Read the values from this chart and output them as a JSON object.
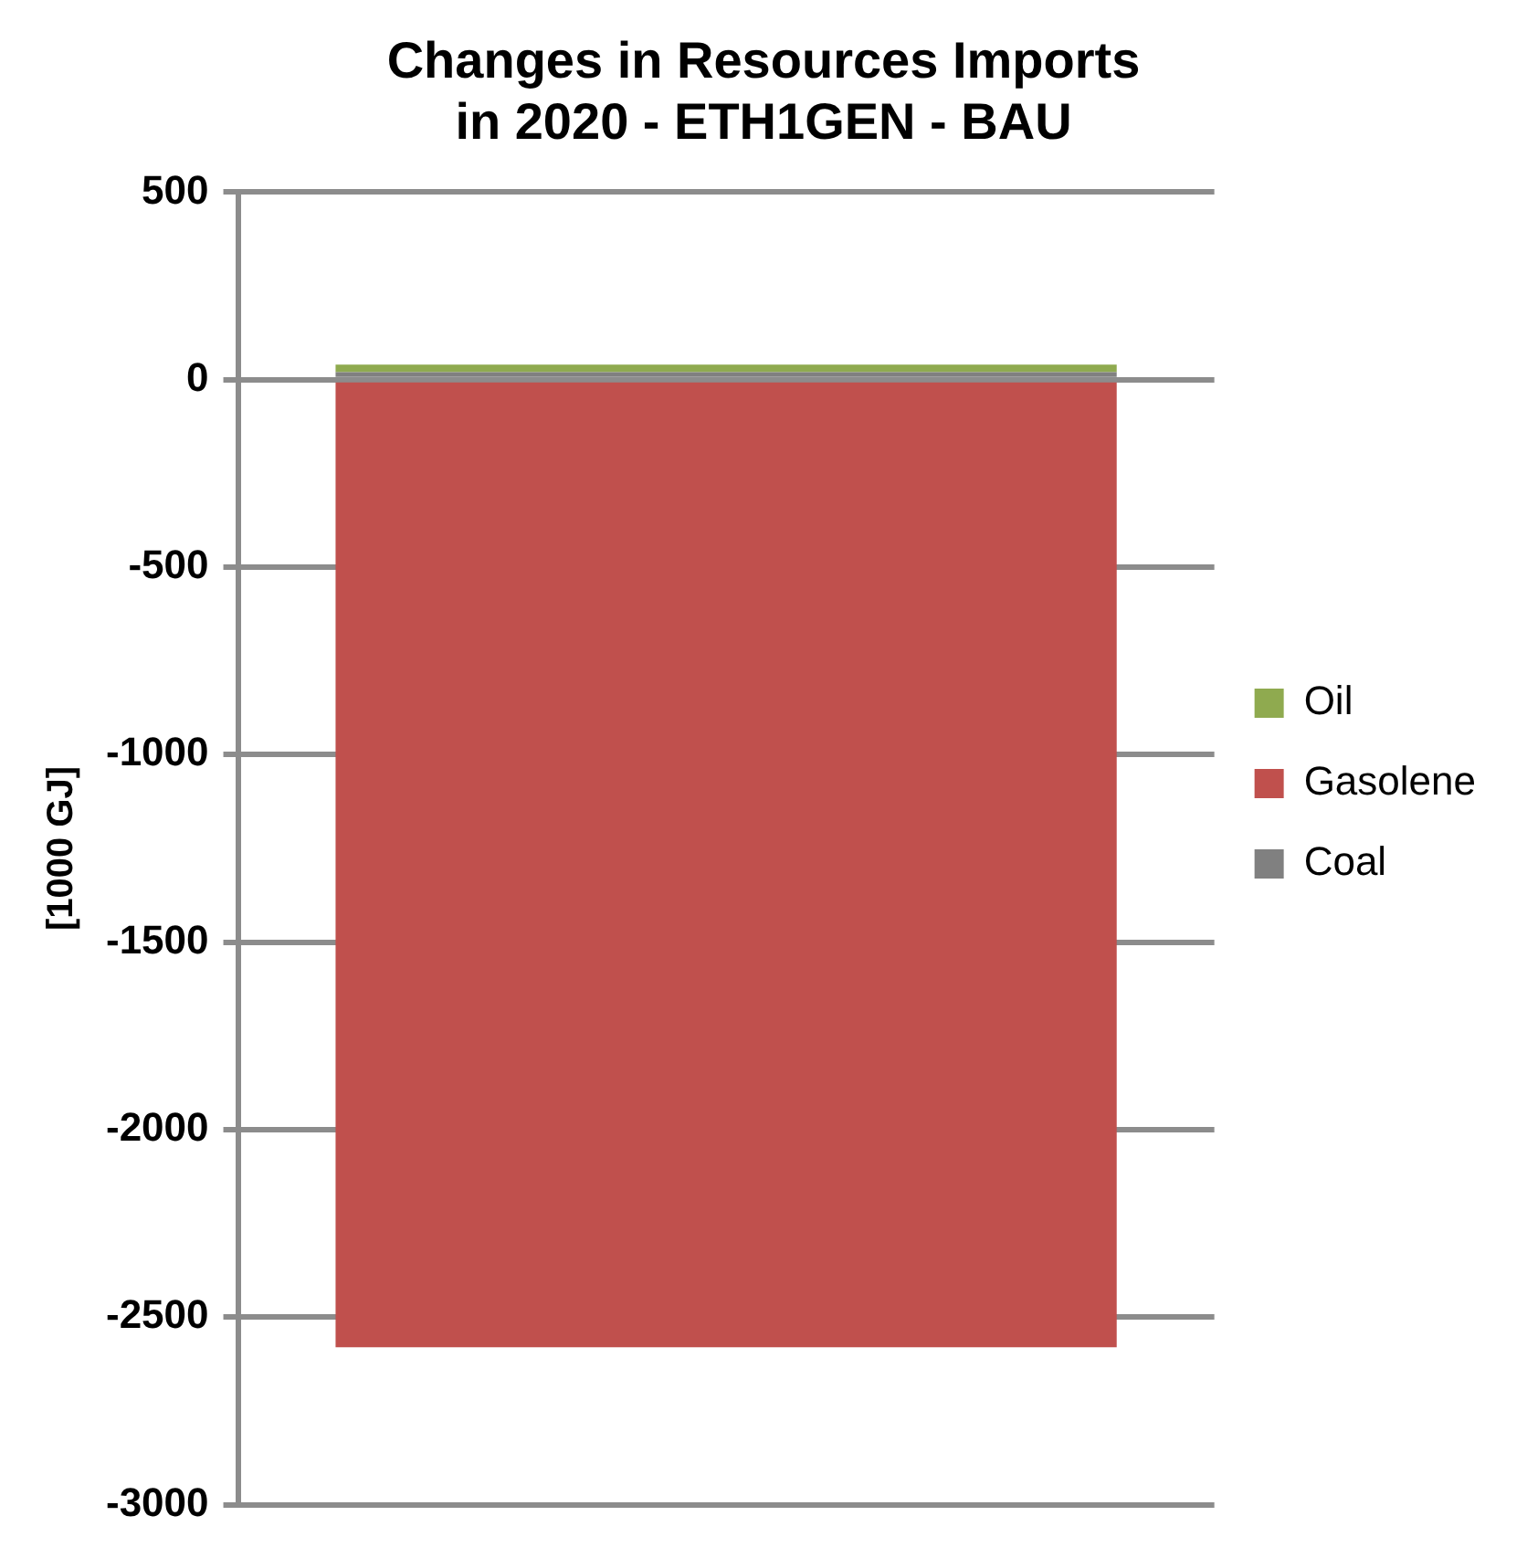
{
  "chart_data": {
    "type": "bar",
    "title": "Changes in Resources Imports in 2020 - ETH1GEN - BAU",
    "ylabel": "[1000 GJ]",
    "categories": [
      null
    ],
    "stacked": true,
    "series": [
      {
        "name": "Coal",
        "color": "#808080",
        "values": [
          20
        ]
      },
      {
        "name": "Gasolene",
        "color": "#c0504d",
        "values": [
          -2580
        ]
      },
      {
        "name": "Oil",
        "color": "#8faa4f",
        "values": [
          20
        ]
      }
    ],
    "ylim": [
      -3000,
      500
    ],
    "yticks": [
      -3000,
      -2500,
      -2000,
      -1500,
      -1000,
      -500,
      0,
      500
    ],
    "grid": "y",
    "legend": "right"
  }
}
